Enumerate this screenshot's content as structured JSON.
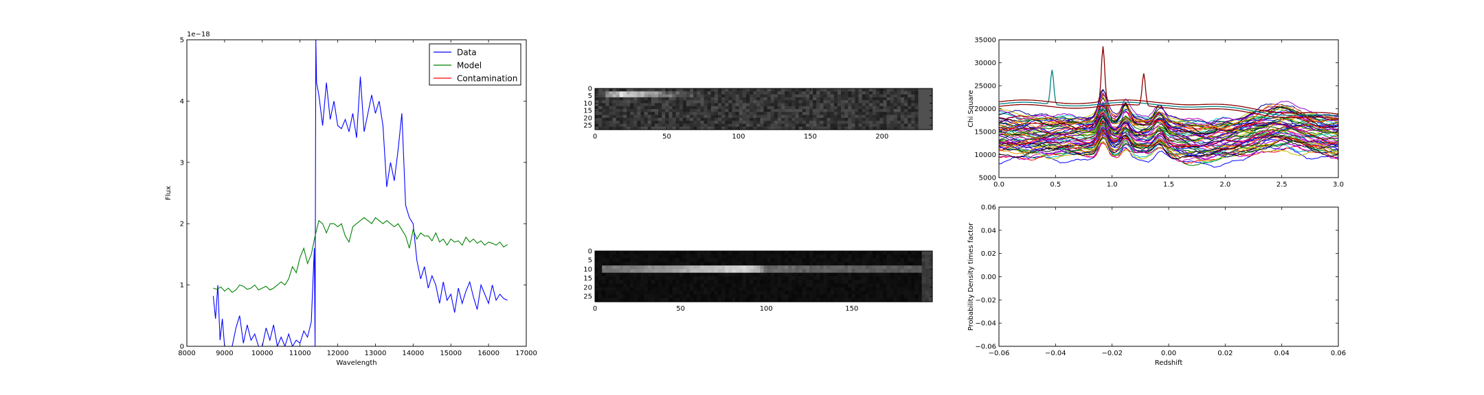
{
  "chart_data": [
    {
      "type": "line",
      "xlabel": "Wavelength",
      "ylabel": "Flux",
      "offset_label": "1e−18",
      "xlim": [
        8000,
        17000
      ],
      "ylim": [
        0,
        5
      ],
      "xticks": [
        8000,
        9000,
        10000,
        11000,
        12000,
        13000,
        14000,
        15000,
        16000,
        17000
      ],
      "yticks": [
        0,
        1,
        2,
        3,
        4,
        5
      ],
      "legend": "top-right",
      "series": [
        {
          "name": "Data",
          "color": "#0000ff",
          "x": [
            8700,
            8760,
            8820,
            8880,
            8940,
            9000,
            9100,
            9200,
            9300,
            9400,
            9500,
            9600,
            9700,
            9800,
            9900,
            10000,
            10100,
            10200,
            10300,
            10400,
            10500,
            10600,
            10700,
            10800,
            10900,
            11000,
            11100,
            11200,
            11300,
            11380,
            11400,
            11420,
            11440,
            11500,
            11600,
            11700,
            11800,
            11900,
            12000,
            12100,
            12200,
            12300,
            12400,
            12500,
            12600,
            12700,
            12800,
            12900,
            13000,
            13100,
            13200,
            13300,
            13400,
            13500,
            13600,
            13700,
            13800,
            13900,
            14000,
            14100,
            14200,
            14300,
            14400,
            14500,
            14600,
            14700,
            14800,
            14900,
            15000,
            15100,
            15200,
            15300,
            15400,
            15500,
            15600,
            15700,
            15800,
            15900,
            16000,
            16100,
            16200,
            16300,
            16400,
            16500
          ],
          "y": [
            0.82,
            0.45,
            1.0,
            0.1,
            0.45,
            0.0,
            0.0,
            0.0,
            0.3,
            0.5,
            0.05,
            0.35,
            0.1,
            0.2,
            0.0,
            0.0,
            0.3,
            0.1,
            0.35,
            0.0,
            0.15,
            0.0,
            0.2,
            0.0,
            0.1,
            0.05,
            0.25,
            0.15,
            0.4,
            1.6,
            0.0,
            5.0,
            4.3,
            4.1,
            3.6,
            4.3,
            3.7,
            4.0,
            3.6,
            3.55,
            3.7,
            3.5,
            3.8,
            3.4,
            4.4,
            3.5,
            3.8,
            4.1,
            3.8,
            4.0,
            3.6,
            2.6,
            3.0,
            2.7,
            3.2,
            3.8,
            2.3,
            2.1,
            2.0,
            1.4,
            1.1,
            1.3,
            0.95,
            1.15,
            1.0,
            0.7,
            1.05,
            0.75,
            0.85,
            0.55,
            0.95,
            0.7,
            0.9,
            1.05,
            0.8,
            0.6,
            1.0,
            0.85,
            0.7,
            1.0,
            0.75,
            0.85,
            0.78,
            0.75
          ]
        },
        {
          "name": "Model",
          "color": "#008000",
          "x": [
            8700,
            8800,
            8900,
            9000,
            9100,
            9200,
            9300,
            9400,
            9500,
            9600,
            9700,
            9800,
            9900,
            10000,
            10100,
            10200,
            10300,
            10400,
            10500,
            10600,
            10700,
            10800,
            10900,
            11000,
            11100,
            11200,
            11300,
            11400,
            11500,
            11600,
            11700,
            11800,
            11900,
            12000,
            12100,
            12200,
            12300,
            12400,
            12500,
            12600,
            12700,
            12800,
            12900,
            13000,
            13100,
            13200,
            13300,
            13400,
            13500,
            13600,
            13700,
            13800,
            13900,
            14000,
            14100,
            14200,
            14300,
            14400,
            14500,
            14600,
            14700,
            14800,
            14900,
            15000,
            15100,
            15200,
            15300,
            15400,
            15500,
            15600,
            15700,
            15800,
            15900,
            16000,
            16100,
            16200,
            16300,
            16400,
            16500
          ],
          "y": [
            0.95,
            0.93,
            0.97,
            0.9,
            0.95,
            0.88,
            0.92,
            1.0,
            0.98,
            0.93,
            0.95,
            1.0,
            0.92,
            0.95,
            0.98,
            0.92,
            0.95,
            1.0,
            1.05,
            1.0,
            1.1,
            1.3,
            1.2,
            1.45,
            1.6,
            1.35,
            1.5,
            1.8,
            2.05,
            2.0,
            1.85,
            2.0,
            2.0,
            1.95,
            2.0,
            1.8,
            1.7,
            1.95,
            2.0,
            2.05,
            2.1,
            2.05,
            2.0,
            2.1,
            2.05,
            2.0,
            2.05,
            2.0,
            1.95,
            2.0,
            1.9,
            1.8,
            1.6,
            1.9,
            1.75,
            1.85,
            1.8,
            1.8,
            1.72,
            1.85,
            1.7,
            1.75,
            1.65,
            1.75,
            1.7,
            1.72,
            1.65,
            1.78,
            1.7,
            1.75,
            1.68,
            1.72,
            1.65,
            1.7,
            1.68,
            1.65,
            1.7,
            1.62,
            1.66
          ]
        },
        {
          "name": "Contamination",
          "color": "#ff0000",
          "x": [
            11400,
            16500
          ],
          "y": [
            0.0,
            0.0
          ]
        }
      ]
    },
    {
      "type": "heatmap",
      "xlim": [
        0,
        235
      ],
      "ylim": [
        28,
        0
      ],
      "xticks": [
        0,
        50,
        100,
        150,
        200
      ],
      "yticks": [
        0,
        5,
        10,
        15,
        20,
        25
      ],
      "colormap": "gray"
    },
    {
      "type": "heatmap",
      "xlim": [
        0,
        197
      ],
      "ylim": [
        28,
        0
      ],
      "xticks": [
        0,
        50,
        100,
        150
      ],
      "yticks": [
        0,
        5,
        10,
        15,
        20,
        25
      ],
      "colormap": "gray"
    },
    {
      "type": "line",
      "ylabel": "Chi Square",
      "xlim": [
        0.0,
        3.0
      ],
      "ylim": [
        5000,
        35000
      ],
      "xticks": [
        0.0,
        0.5,
        1.0,
        1.5,
        2.0,
        2.5,
        3.0
      ],
      "yticks": [
        5000,
        10000,
        15000,
        20000,
        25000,
        30000,
        35000
      ],
      "many_series": true,
      "approx_series_count": 60
    },
    {
      "type": "line",
      "xlabel": "Redshift",
      "ylabel": "Probability Density times factor",
      "xlim": [
        -0.06,
        0.06
      ],
      "ylim": [
        -0.06,
        0.06
      ],
      "xticks": [
        -0.06,
        -0.04,
        -0.02,
        0.0,
        0.02,
        0.04,
        0.06
      ],
      "yticks": [
        -0.06,
        -0.04,
        -0.02,
        0.0,
        0.02,
        0.04,
        0.06
      ]
    }
  ]
}
